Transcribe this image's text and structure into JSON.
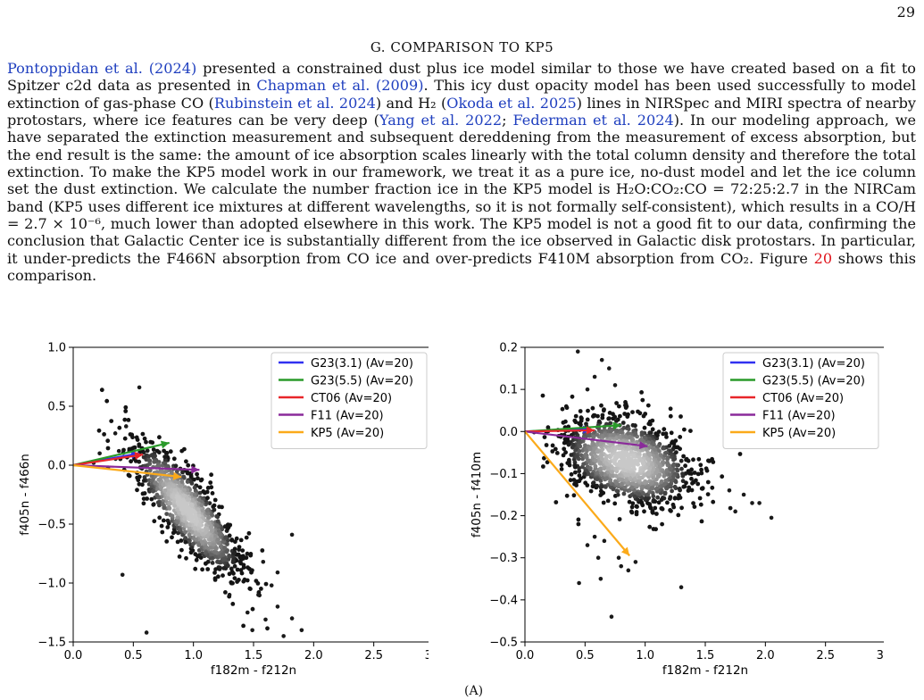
{
  "page_number": "29",
  "section_title": "G. COMPARISON TO KP5",
  "paragraph": [
    {
      "t": "Pontoppidan et al. (2024)",
      "c": "link"
    },
    {
      "t": " presented a constrained dust plus ice model similar to those we have created based on a fit to Spitzer c2d data as presented in "
    },
    {
      "t": "Chapman et al. (2009)",
      "c": "link"
    },
    {
      "t": ". This icy dust opacity model has been used successfully to model extinction of gas-phase CO ("
    },
    {
      "t": "Rubinstein et al. 2024",
      "c": "link"
    },
    {
      "t": ") and H₂ ("
    },
    {
      "t": "Okoda et al. 2025",
      "c": "link"
    },
    {
      "t": ") lines in NIRSpec and MIRI spectra of nearby protostars, where ice features can be very deep ("
    },
    {
      "t": "Yang et al. 2022",
      "c": "link"
    },
    {
      "t": "; "
    },
    {
      "t": "Federman et al. 2024",
      "c": "link"
    },
    {
      "t": "). In our modeling approach, we have separated the extinction measurement and subsequent dereddening from the measurement of excess absorption, but the end result is the same: the amount of ice absorption scales linearly with the total column density and therefore the total extinction. To make the KP5 model work in our framework, we treat it as a pure ice, no-dust model and let the ice column set the dust extinction. We calculate the number fraction ice in the KP5 model is H₂O:CO₂:CO = 72:25:2.7 in the NIRCam band (KP5 uses different ice mixtures at different wavelengths, so it is not formally self-consistent), which results in a CO/H = 2.7 × 10⁻⁶, much lower than adopted elsewhere in this work. The KP5 model is not a good fit to our data, confirming the conclusion that Galactic Center ice is substantially different from the ice observed in Galactic disk protostars. In particular, it under-predicts the F466N absorption from CO ice and over-predicts F410M absorption from CO₂. Figure "
    },
    {
      "t": "20",
      "c": "ref-red"
    },
    {
      "t": " shows this comparison."
    }
  ],
  "caption_stub": "(A)",
  "chart_data": [
    {
      "type": "scatter",
      "xlabel": "f182m - f212n",
      "ylabel": "f405n - f466n",
      "xlim": [
        0.0,
        3.0
      ],
      "ylim": [
        -1.5,
        1.0
      ],
      "xticks": [
        "0.0",
        "0.5",
        "1.0",
        "1.5",
        "2.0",
        "2.5",
        "3.0"
      ],
      "yticks": [
        "1.0",
        "0.5",
        "0.0",
        "−0.5",
        "−1.0",
        "−1.5"
      ],
      "ytick_values": [
        1.0,
        0.5,
        0.0,
        -0.5,
        -1.0,
        -1.5
      ],
      "density_cloud": {
        "center": [
          0.95,
          -0.38
        ],
        "sigma": [
          0.23,
          0.29
        ],
        "corr": -0.82,
        "n": 1100
      },
      "outliers": [
        [
          0.55,
          0.66
        ],
        [
          0.44,
          0.33
        ],
        [
          0.38,
          0.12
        ],
        [
          0.35,
          0.27
        ],
        [
          0.17,
          0.02
        ],
        [
          0.22,
          0.1
        ],
        [
          0.29,
          -0.02
        ],
        [
          0.41,
          -0.93
        ],
        [
          0.61,
          -1.42
        ],
        [
          1.82,
          -0.59
        ],
        [
          1.9,
          -1.4
        ],
        [
          1.75,
          -1.45
        ],
        [
          1.6,
          -1.31
        ],
        [
          1.54,
          -1.1
        ],
        [
          1.7,
          -1.2
        ],
        [
          1.45,
          -1.25
        ],
        [
          1.3,
          -1.1
        ],
        [
          1.65,
          -1.02
        ],
        [
          1.82,
          -1.3
        ],
        [
          1.7,
          -0.91
        ],
        [
          1.58,
          -0.82
        ],
        [
          1.49,
          -1.4
        ]
      ],
      "series": [
        {
          "name": "G23(3.1) (Av=20)",
          "color": "#3030f0",
          "x": [
            0,
            0.55
          ],
          "y": [
            0,
            0.1
          ]
        },
        {
          "name": "G23(5.5) (Av=20)",
          "color": "#2a9a2a",
          "x": [
            0,
            0.8
          ],
          "y": [
            0,
            0.19
          ]
        },
        {
          "name": "CT06 (Av=20)",
          "color": "#e8262a",
          "x": [
            0,
            0.58
          ],
          "y": [
            0,
            0.09
          ]
        },
        {
          "name": "F11 (Av=20)",
          "color": "#8a2a9a",
          "x": [
            0,
            1.05
          ],
          "y": [
            0,
            -0.04
          ]
        },
        {
          "name": "KP5 (Av=20)",
          "color": "#fbaa1a",
          "x": [
            0,
            0.9
          ],
          "y": [
            0,
            -0.1
          ]
        }
      ],
      "legend": "top-right"
    },
    {
      "type": "scatter",
      "xlabel": "f182m - f212n",
      "ylabel": "f405n - f410m",
      "xlim": [
        0.0,
        3.0
      ],
      "ylim": [
        -0.5,
        0.2
      ],
      "xticks": [
        "0.0",
        "0.5",
        "1.0",
        "1.5",
        "2.0",
        "2.5",
        "3.0"
      ],
      "yticks": [
        "0.2",
        "0.1",
        "0.0",
        "−0.1",
        "−0.2",
        "−0.3",
        "−0.4",
        "−0.5"
      ],
      "ytick_values": [
        0.2,
        0.1,
        0.0,
        -0.1,
        -0.2,
        -0.3,
        -0.4,
        -0.5
      ],
      "density_cloud": {
        "center": [
          0.85,
          -0.07
        ],
        "sigma": [
          0.28,
          0.055
        ],
        "corr": -0.35,
        "n": 1200
      },
      "outliers": [
        [
          0.44,
          0.19
        ],
        [
          0.64,
          0.17
        ],
        [
          0.7,
          0.15
        ],
        [
          0.58,
          0.13
        ],
        [
          0.75,
          0.11
        ],
        [
          0.52,
          0.1
        ],
        [
          2.05,
          -0.205
        ],
        [
          1.3,
          -0.37
        ],
        [
          0.72,
          -0.44
        ],
        [
          0.63,
          -0.35
        ],
        [
          0.45,
          -0.36
        ],
        [
          0.8,
          -0.32
        ],
        [
          0.86,
          -0.33
        ],
        [
          0.52,
          -0.27
        ],
        [
          0.66,
          -0.26
        ],
        [
          0.58,
          -0.25
        ],
        [
          0.78,
          -0.3
        ],
        [
          0.92,
          -0.31
        ],
        [
          0.61,
          -0.3
        ],
        [
          1.89,
          -0.17
        ],
        [
          1.82,
          -0.15
        ],
        [
          1.7,
          -0.14
        ],
        [
          1.95,
          -0.17
        ],
        [
          1.75,
          -0.19
        ]
      ],
      "series": [
        {
          "name": "G23(3.1) (Av=20)",
          "color": "#3030f0",
          "x": [
            0,
            0.55
          ],
          "y": [
            0,
            0.005
          ]
        },
        {
          "name": "G23(5.5) (Av=20)",
          "color": "#2a9a2a",
          "x": [
            0,
            0.8
          ],
          "y": [
            0,
            0.015
          ]
        },
        {
          "name": "CT06 (Av=20)",
          "color": "#e8262a",
          "x": [
            0,
            0.58
          ],
          "y": [
            0,
            0.003
          ]
        },
        {
          "name": "F11 (Av=20)",
          "color": "#8a2a9a",
          "x": [
            0,
            1.02
          ],
          "y": [
            0,
            -0.035
          ]
        },
        {
          "name": "KP5 (Av=20)",
          "color": "#fbaa1a",
          "x": [
            0,
            0.87
          ],
          "y": [
            0,
            -0.295
          ]
        }
      ],
      "legend": "top-right"
    }
  ]
}
